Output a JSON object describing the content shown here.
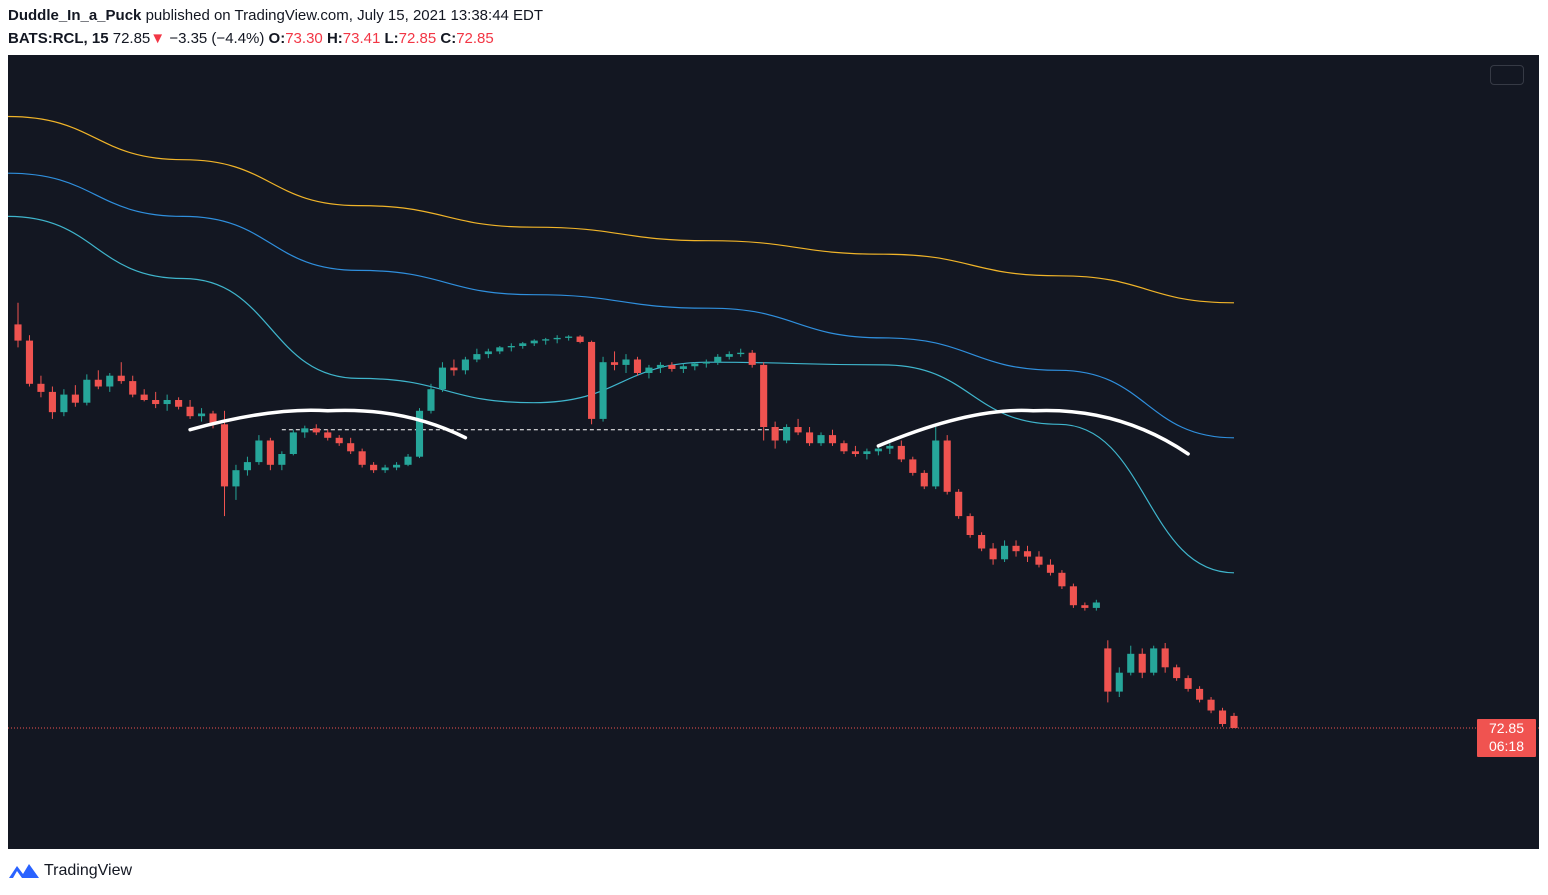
{
  "header": {
    "author": "Duddle_In_a_Puck",
    "published": "published on TradingView.com, July 15, 2021 13:38:44 EDT",
    "symbol": "BATS:RCL, 15",
    "last": "72.85",
    "down_arrow": "▼",
    "change": "−3.35 (−4.4%)",
    "open_label": "O:",
    "open": "73.30",
    "high_label": "H:",
    "high": "73.41",
    "low_label": "L:",
    "low": "72.85",
    "close_label": "C:",
    "close": "72.85"
  },
  "price_tag": {
    "price": "72.85",
    "countdown": "06:18"
  },
  "footer": {
    "brand": "TradingView",
    "logo_icon": "tradingview-logo-icon"
  },
  "colors": {
    "background": "#131722",
    "up": "#26a69a",
    "down": "#ef5350",
    "ma_long": "#f0b429",
    "ma_mid": "#2f8fdd",
    "ma_short": "#3fb5cc",
    "annotation": "#ffffff"
  },
  "chart_data": {
    "type": "candlestick",
    "symbol": "BATS:RCL",
    "interval": "15",
    "last_price": 72.85,
    "candles": [
      [
        87.8,
        88.6,
        86.95,
        87.2
      ],
      [
        87.2,
        87.4,
        85.5,
        85.6
      ],
      [
        85.6,
        85.9,
        85.1,
        85.3
      ],
      [
        85.3,
        85.5,
        84.3,
        84.55
      ],
      [
        84.55,
        85.4,
        84.4,
        85.2
      ],
      [
        85.2,
        85.55,
        84.75,
        84.9
      ],
      [
        84.9,
        85.95,
        84.8,
        85.75
      ],
      [
        85.75,
        86.1,
        85.4,
        85.5
      ],
      [
        85.5,
        86.0,
        85.3,
        85.9
      ],
      [
        85.9,
        86.4,
        85.6,
        85.7
      ],
      [
        85.7,
        85.9,
        85.1,
        85.2
      ],
      [
        85.2,
        85.4,
        84.95,
        85.0
      ],
      [
        85.0,
        85.3,
        84.7,
        84.85
      ],
      [
        84.85,
        85.2,
        84.6,
        85.0
      ],
      [
        85.0,
        85.1,
        84.65,
        84.75
      ],
      [
        84.75,
        85.0,
        84.3,
        84.4
      ],
      [
        84.4,
        84.7,
        84.2,
        84.5
      ],
      [
        84.5,
        84.6,
        83.95,
        84.1
      ],
      [
        84.1,
        84.6,
        80.7,
        81.8
      ],
      [
        81.8,
        82.6,
        81.3,
        82.4
      ],
      [
        82.4,
        82.9,
        82.2,
        82.7
      ],
      [
        82.7,
        83.7,
        82.6,
        83.5
      ],
      [
        83.5,
        83.6,
        82.4,
        82.6
      ],
      [
        82.6,
        83.1,
        82.4,
        83.0
      ],
      [
        83.0,
        83.9,
        82.95,
        83.8
      ],
      [
        83.8,
        84.05,
        83.6,
        83.95
      ],
      [
        83.95,
        84.1,
        83.7,
        83.8
      ],
      [
        83.8,
        83.9,
        83.5,
        83.6
      ],
      [
        83.6,
        83.7,
        83.3,
        83.4
      ],
      [
        83.4,
        83.6,
        83.0,
        83.1
      ],
      [
        83.1,
        83.2,
        82.5,
        82.6
      ],
      [
        82.6,
        82.7,
        82.3,
        82.4
      ],
      [
        82.4,
        82.6,
        82.3,
        82.5
      ],
      [
        82.5,
        82.7,
        82.4,
        82.6
      ],
      [
        82.6,
        83.0,
        82.55,
        82.9
      ],
      [
        82.9,
        84.7,
        82.85,
        84.6
      ],
      [
        84.6,
        85.6,
        84.5,
        85.4
      ],
      [
        85.4,
        86.4,
        85.3,
        86.2
      ],
      [
        86.2,
        86.5,
        85.9,
        86.1
      ],
      [
        86.1,
        86.6,
        85.95,
        86.5
      ],
      [
        86.5,
        86.9,
        86.4,
        86.7
      ],
      [
        86.7,
        86.9,
        86.55,
        86.8
      ],
      [
        86.8,
        87.0,
        86.7,
        86.95
      ],
      [
        86.95,
        87.1,
        86.8,
        87.0
      ],
      [
        87.0,
        87.15,
        86.9,
        87.1
      ],
      [
        87.1,
        87.25,
        87.0,
        87.2
      ],
      [
        87.2,
        87.3,
        87.05,
        87.25
      ],
      [
        87.25,
        87.4,
        87.1,
        87.3
      ],
      [
        87.3,
        87.4,
        87.2,
        87.35
      ],
      [
        87.35,
        87.4,
        87.1,
        87.15
      ],
      [
        87.15,
        87.2,
        84.1,
        84.3
      ],
      [
        84.3,
        86.6,
        84.2,
        86.4
      ],
      [
        86.4,
        86.8,
        86.1,
        86.3
      ],
      [
        86.3,
        86.7,
        86.0,
        86.5
      ],
      [
        86.5,
        86.6,
        85.9,
        86.0
      ],
      [
        86.0,
        86.3,
        85.8,
        86.2
      ],
      [
        86.2,
        86.4,
        86.0,
        86.3
      ],
      [
        86.3,
        86.4,
        86.05,
        86.15
      ],
      [
        86.15,
        86.35,
        86.0,
        86.25
      ],
      [
        86.25,
        86.4,
        86.1,
        86.35
      ],
      [
        86.35,
        86.5,
        86.2,
        86.4
      ],
      [
        86.4,
        86.7,
        86.3,
        86.6
      ],
      [
        86.6,
        86.8,
        86.5,
        86.7
      ],
      [
        86.7,
        86.9,
        86.6,
        86.75
      ],
      [
        86.75,
        86.85,
        86.2,
        86.3
      ],
      [
        86.3,
        86.4,
        83.5,
        84.0
      ],
      [
        84.0,
        84.2,
        83.2,
        83.5
      ],
      [
        83.5,
        84.1,
        83.4,
        84.0
      ],
      [
        84.0,
        84.3,
        83.7,
        83.8
      ],
      [
        83.8,
        84.0,
        83.3,
        83.4
      ],
      [
        83.4,
        83.8,
        83.3,
        83.7
      ],
      [
        83.7,
        83.9,
        83.3,
        83.4
      ],
      [
        83.4,
        83.5,
        83.0,
        83.1
      ],
      [
        83.1,
        83.3,
        82.9,
        83.0
      ],
      [
        83.0,
        83.2,
        82.8,
        83.1
      ],
      [
        83.1,
        83.3,
        82.95,
        83.2
      ],
      [
        83.2,
        83.4,
        83.0,
        83.3
      ],
      [
        83.3,
        83.5,
        82.7,
        82.8
      ],
      [
        82.8,
        82.9,
        82.2,
        82.3
      ],
      [
        82.3,
        82.4,
        81.7,
        81.8
      ],
      [
        81.8,
        84.0,
        81.7,
        83.5
      ],
      [
        83.5,
        83.7,
        81.5,
        81.6
      ],
      [
        81.6,
        81.7,
        80.6,
        80.7
      ],
      [
        80.7,
        80.8,
        79.9,
        80.0
      ],
      [
        80.0,
        80.1,
        79.4,
        79.5
      ],
      [
        79.5,
        79.7,
        78.9,
        79.1
      ],
      [
        79.1,
        79.8,
        79.0,
        79.6
      ],
      [
        79.6,
        79.8,
        79.2,
        79.4
      ],
      [
        79.4,
        79.6,
        79.0,
        79.2
      ],
      [
        79.2,
        79.4,
        78.8,
        78.9
      ],
      [
        78.9,
        79.1,
        78.5,
        78.6
      ],
      [
        78.6,
        78.7,
        78.0,
        78.1
      ],
      [
        78.1,
        78.2,
        77.3,
        77.4
      ],
      [
        77.4,
        77.5,
        77.2,
        77.3
      ],
      [
        77.3,
        77.6,
        77.2,
        77.5
      ],
      [
        75.8,
        76.1,
        73.8,
        74.2
      ],
      [
        74.2,
        75.1,
        74.0,
        74.9
      ],
      [
        74.9,
        75.9,
        74.8,
        75.6
      ],
      [
        75.6,
        75.8,
        74.7,
        74.9
      ],
      [
        74.9,
        75.9,
        74.8,
        75.8
      ],
      [
        75.8,
        76.0,
        74.9,
        75.1
      ],
      [
        75.1,
        75.2,
        74.6,
        74.7
      ],
      [
        74.7,
        74.8,
        74.2,
        74.3
      ],
      [
        74.3,
        74.4,
        73.8,
        73.9
      ],
      [
        73.9,
        74.0,
        73.4,
        73.5
      ],
      [
        73.5,
        73.6,
        72.9,
        73.0
      ],
      [
        73.3,
        73.41,
        72.85,
        72.85
      ]
    ],
    "moving_averages": [
      {
        "color": "#f0b429",
        "values": [
          95.5,
          93.9,
          92.2,
          91.4,
          90.9,
          90.4,
          89.6,
          88.6
        ]
      },
      {
        "color": "#2f8fdd",
        "values": [
          93.4,
          91.8,
          89.8,
          88.9,
          88.4,
          87.3,
          86.1,
          83.6
        ]
      },
      {
        "color": "#3fb5cc",
        "values": [
          91.8,
          89.5,
          85.8,
          84.9,
          86.4,
          86.3,
          84.1,
          78.6
        ]
      }
    ],
    "annotations": {
      "arcs": 2,
      "dashed_levels": [
        83.9
      ]
    },
    "price_line": 72.85,
    "grid": false
  }
}
